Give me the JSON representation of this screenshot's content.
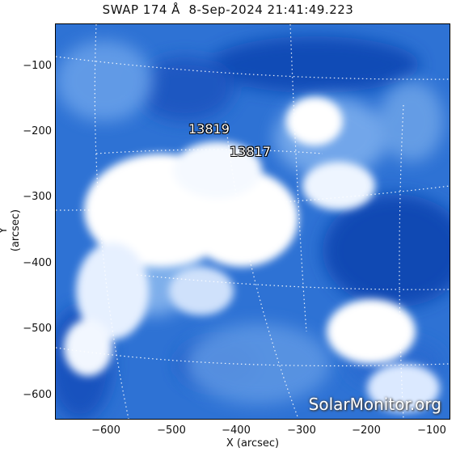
{
  "title": "SWAP 174 Å  8-Sep-2024 21:41:49.223",
  "xlabel": "X (arcsec)",
  "ylabel": "Y (arcsec)",
  "x_ticks": [
    "−600",
    "−500",
    "−400",
    "−300",
    "−200",
    "−100"
  ],
  "y_ticks": [
    "−100",
    "−200",
    "−300",
    "−400",
    "−500",
    "−600"
  ],
  "active_regions": [
    "13819",
    "13817"
  ],
  "watermark": "SolarMonitor.org",
  "colors": {
    "background": "#2b6fd0",
    "bright": "#ffffff",
    "dark": "#0b3fa6"
  }
}
